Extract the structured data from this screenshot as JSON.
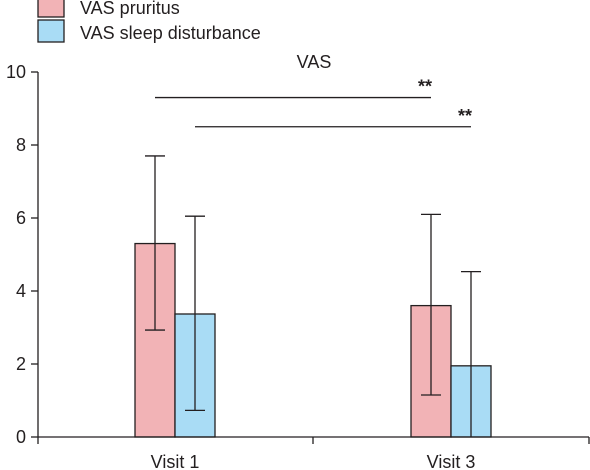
{
  "chart_data": {
    "type": "bar",
    "title": "VAS",
    "xlabel": "",
    "ylabel": "",
    "categories": [
      "Visit 1",
      "Visit 3"
    ],
    "ylim": [
      0,
      10
    ],
    "yticks": [
      0,
      2,
      4,
      6,
      8,
      10
    ],
    "grid": false,
    "legend_position": "top-left",
    "error_bars": true,
    "series": [
      {
        "name": "VAS pruritus",
        "color": "#f2b3b6",
        "values": [
          5.3,
          3.6
        ],
        "error_low": [
          2.93,
          1.15
        ],
        "error_high": [
          7.7,
          6.1
        ]
      },
      {
        "name": "VAS sleep disturbance",
        "color": "#a9dcf5",
        "values": [
          3.37,
          1.95
        ],
        "error_low": [
          0.73,
          0.0
        ],
        "error_high": [
          6.05,
          4.53
        ]
      }
    ],
    "annotations": [
      {
        "label": "**",
        "from_series": 0,
        "from_category": 0,
        "to_series": 0,
        "to_category": 1,
        "y": 9.3
      },
      {
        "label": "**",
        "from_series": 1,
        "from_category": 0,
        "to_series": 1,
        "to_category": 1,
        "y": 8.5
      }
    ]
  }
}
